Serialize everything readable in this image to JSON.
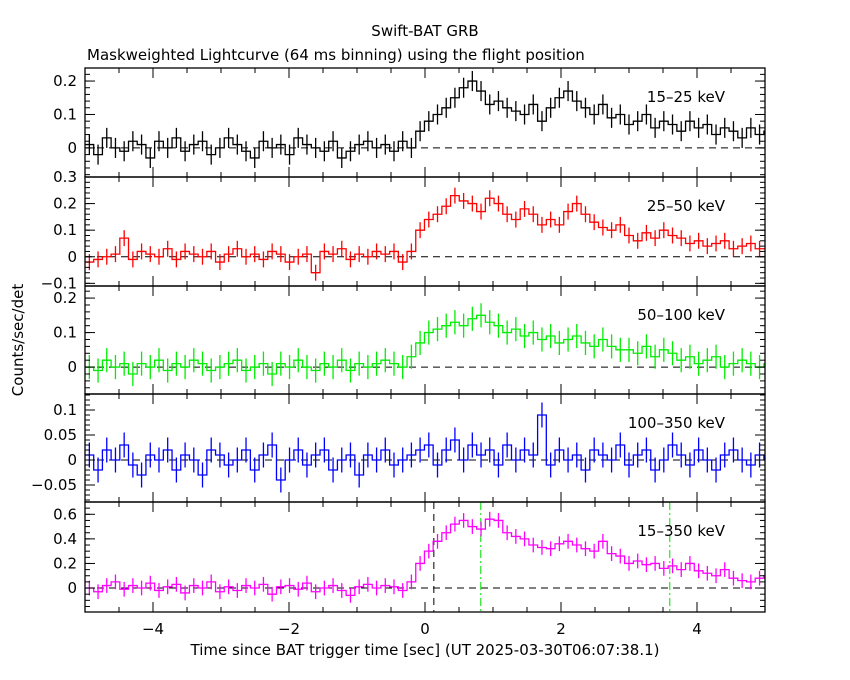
{
  "chart_data": {
    "type": "line",
    "title": "Swift-BAT GRB",
    "subtitle": "Maskweighted Lightcurve (64 ms binning) using the flight position",
    "xlabel": "Time since BAT trigger time [sec] (UT 2025-03-30T06:07:38.1)",
    "ylabel": "Counts/sec/det",
    "xlim": [
      -5,
      5
    ],
    "x_ticks": [
      -4,
      -2,
      0,
      2,
      4
    ],
    "bin_start": -5,
    "bin_width": 0.128,
    "reference_lines": [
      {
        "t": 0.13,
        "color": "#000000",
        "style": "dashed"
      },
      {
        "t": 0.82,
        "color": "#00dd00",
        "style": "dashdot"
      },
      {
        "t": 3.6,
        "color": "#00dd00",
        "style": "dashdot"
      }
    ],
    "panels": [
      {
        "label": "15–25 keV",
        "color": "#000000",
        "ylim": [
          -0.087,
          0.239
        ],
        "yticks": [
          0,
          0.1,
          0.2
        ],
        "ytick_labels": [
          "0",
          "0.1",
          "0.2"
        ],
        "minor": 0.02,
        "error": 0.03,
        "values": [
          0.01,
          -0.02,
          0.03,
          0.0,
          -0.01,
          0.02,
          0.01,
          -0.03,
          0.02,
          0.0,
          0.03,
          -0.01,
          0.01,
          0.02,
          -0.02,
          0.0,
          0.03,
          0.01,
          -0.01,
          -0.03,
          0.02,
          0.0,
          0.01,
          -0.02,
          0.03,
          0.01,
          0.0,
          -0.01,
          0.02,
          -0.03,
          -0.01,
          0.01,
          0.02,
          0.0,
          0.01,
          -0.01,
          0.02,
          0.0,
          0.05,
          0.08,
          0.1,
          0.12,
          0.15,
          0.18,
          0.2,
          0.17,
          0.13,
          0.14,
          0.12,
          0.11,
          0.1,
          0.13,
          0.08,
          0.12,
          0.15,
          0.17,
          0.14,
          0.12,
          0.1,
          0.13,
          0.09,
          0.1,
          0.07,
          0.08,
          0.1,
          0.06,
          0.08,
          0.07,
          0.05,
          0.08,
          0.06,
          0.07,
          0.04,
          0.06,
          0.05,
          0.03,
          0.06,
          0.04,
          0.05
        ]
      },
      {
        "label": "25–50 keV",
        "color": "#ff0000",
        "ylim": [
          -0.11,
          0.3
        ],
        "yticks": [
          -0.1,
          0,
          0.1,
          0.2,
          0.3
        ],
        "ytick_labels": [
          "−0.1",
          "0",
          "0.1",
          "0.2",
          "0.3"
        ],
        "minor": 0.02,
        "error": 0.03,
        "values": [
          -0.02,
          -0.01,
          0.0,
          0.01,
          0.07,
          -0.01,
          0.02,
          0.01,
          0.0,
          0.03,
          -0.01,
          0.02,
          0.01,
          0.0,
          0.02,
          -0.02,
          0.01,
          0.03,
          0.0,
          0.01,
          -0.01,
          0.02,
          0.01,
          -0.02,
          0.0,
          0.01,
          -0.06,
          0.02,
          0.01,
          0.03,
          -0.01,
          0.01,
          0.0,
          0.02,
          0.01,
          0.02,
          -0.02,
          0.02,
          0.1,
          0.14,
          0.16,
          0.19,
          0.23,
          0.21,
          0.2,
          0.17,
          0.22,
          0.2,
          0.16,
          0.14,
          0.18,
          0.16,
          0.12,
          0.14,
          0.12,
          0.17,
          0.2,
          0.16,
          0.13,
          0.11,
          0.1,
          0.12,
          0.08,
          0.06,
          0.09,
          0.07,
          0.1,
          0.08,
          0.07,
          0.05,
          0.06,
          0.04,
          0.05,
          0.06,
          0.03,
          0.04,
          0.05,
          0.03,
          0.03
        ]
      },
      {
        "label": "50–100 keV",
        "color": "#00ee00",
        "ylim": [
          -0.078,
          0.235
        ],
        "yticks": [
          0,
          0.1,
          0.2
        ],
        "ytick_labels": [
          "0",
          "0.1",
          "0.2"
        ],
        "minor": 0.02,
        "error": 0.035,
        "values": [
          0.0,
          -0.01,
          0.02,
          0.0,
          0.01,
          -0.02,
          0.01,
          0.0,
          0.02,
          -0.01,
          0.01,
          0.0,
          0.02,
          0.01,
          -0.01,
          0.0,
          0.01,
          0.02,
          -0.01,
          0.0,
          0.01,
          -0.02,
          0.01,
          0.0,
          0.02,
          0.0,
          -0.01,
          0.01,
          0.0,
          0.02,
          -0.01,
          0.01,
          0.0,
          0.01,
          0.02,
          0.01,
          0.0,
          0.03,
          0.07,
          0.1,
          0.11,
          0.12,
          0.13,
          0.12,
          0.14,
          0.15,
          0.13,
          0.12,
          0.1,
          0.11,
          0.09,
          0.1,
          0.08,
          0.09,
          0.07,
          0.08,
          0.09,
          0.07,
          0.06,
          0.08,
          0.06,
          0.05,
          0.05,
          0.04,
          0.06,
          0.03,
          0.05,
          0.04,
          0.02,
          0.03,
          0.01,
          0.02,
          0.03,
          0.0,
          0.01,
          0.02,
          0.01,
          0.0,
          0.01
        ]
      },
      {
        "label": "100–350 keV",
        "color": "#0000ff",
        "ylim": [
          -0.084,
          0.132
        ],
        "yticks": [
          -0.05,
          0,
          0.05,
          0.1
        ],
        "ytick_labels": [
          "−0.05",
          "0",
          "0.05",
          "0.1"
        ],
        "minor": 0.01,
        "error": 0.025,
        "values": [
          0.01,
          -0.02,
          0.02,
          0.0,
          0.03,
          -0.01,
          -0.03,
          0.01,
          0.0,
          0.02,
          -0.02,
          0.01,
          0.0,
          -0.03,
          0.02,
          0.01,
          -0.01,
          0.0,
          0.02,
          -0.02,
          0.01,
          0.03,
          -0.04,
          0.0,
          0.02,
          -0.01,
          0.01,
          0.02,
          -0.02,
          0.0,
          0.01,
          -0.03,
          0.01,
          0.0,
          0.02,
          -0.01,
          0.0,
          0.01,
          0.02,
          0.03,
          -0.01,
          0.02,
          0.04,
          0.0,
          0.03,
          0.01,
          0.02,
          -0.01,
          0.03,
          0.0,
          0.02,
          0.01,
          0.09,
          -0.01,
          0.02,
          0.0,
          0.01,
          -0.02,
          0.02,
          0.01,
          0.0,
          0.03,
          -0.01,
          0.01,
          0.02,
          -0.02,
          0.0,
          0.03,
          0.01,
          -0.01,
          0.02,
          0.0,
          -0.02,
          0.01,
          0.02,
          0.0,
          -0.01,
          0.01,
          0.0
        ]
      },
      {
        "label": "15–350 keV",
        "color": "#ff00ff",
        "ylim": [
          -0.195,
          0.7
        ],
        "yticks": [
          0,
          0.2,
          0.4,
          0.6
        ],
        "ytick_labels": [
          "0",
          "0.2",
          "0.4",
          "0.6"
        ],
        "minor": 0.05,
        "error": 0.06,
        "values": [
          0.0,
          -0.03,
          0.02,
          0.05,
          -0.01,
          0.02,
          0.0,
          0.04,
          -0.02,
          0.01,
          0.03,
          -0.04,
          0.02,
          0.0,
          0.05,
          -0.03,
          0.01,
          -0.02,
          0.02,
          0.0,
          0.03,
          -0.05,
          0.01,
          0.02,
          -0.01,
          0.04,
          -0.03,
          0.0,
          0.02,
          -0.02,
          -0.06,
          0.01,
          0.03,
          0.0,
          0.02,
          0.01,
          -0.02,
          0.05,
          0.2,
          0.3,
          0.38,
          0.45,
          0.52,
          0.55,
          0.5,
          0.48,
          0.56,
          0.55,
          0.45,
          0.42,
          0.4,
          0.35,
          0.33,
          0.32,
          0.36,
          0.38,
          0.35,
          0.32,
          0.3,
          0.38,
          0.28,
          0.26,
          0.2,
          0.22,
          0.19,
          0.2,
          0.16,
          0.18,
          0.15,
          0.2,
          0.14,
          0.12,
          0.1,
          0.15,
          0.08,
          0.06,
          0.05,
          0.08,
          0.1
        ]
      }
    ]
  }
}
